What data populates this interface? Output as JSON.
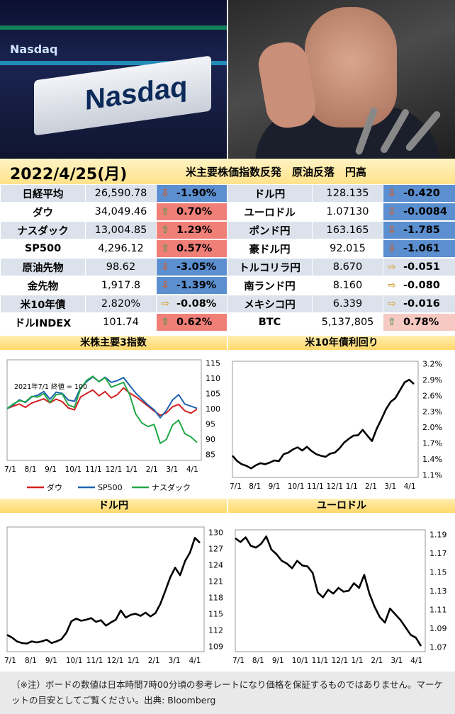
{
  "photos": {
    "left_label_main": "Nasdaq",
    "left_label_small": "Nasdaq",
    "left_alt": "Nasdaq",
    "right_alt": "portrait"
  },
  "header": {
    "date": "2022/4/25(月)",
    "headline": "米主要株価指数反発　原油反落　円高"
  },
  "board": {
    "left": [
      {
        "name": "日経平均",
        "value": "26,590.78",
        "change": "-1.90%",
        "dir": "down"
      },
      {
        "name": "ダウ",
        "value": "34,049.46",
        "change": "0.70%",
        "dir": "up"
      },
      {
        "name": "ナスダック",
        "value": "13,004.85",
        "change": "1.29%",
        "dir": "up"
      },
      {
        "name": "SP500",
        "value": "4,296.12",
        "change": "0.57%",
        "dir": "up"
      },
      {
        "name": "原油先物",
        "value": "98.62",
        "change": "-3.05%",
        "dir": "down"
      },
      {
        "name": "金先物",
        "value": "1,917.8",
        "change": "-1.39%",
        "dir": "down"
      },
      {
        "name": "米10年債",
        "value": "2.820%",
        "change": "-0.08%",
        "dir": "flat"
      },
      {
        "name": "ドルINDEX",
        "value": "101.74",
        "change": "0.62%",
        "dir": "up"
      }
    ],
    "right": [
      {
        "name": "ドル円",
        "value": "128.135",
        "change": "-0.420",
        "dir": "down"
      },
      {
        "name": "ユーロドル",
        "value": "1.07130",
        "change": "-0.0084",
        "dir": "down"
      },
      {
        "name": "ポンド円",
        "value": "163.165",
        "change": "-1.785",
        "dir": "down"
      },
      {
        "name": "豪ドル円",
        "value": "92.015",
        "change": "-1.061",
        "dir": "down"
      },
      {
        "name": "トルコリラ円",
        "value": "8.670",
        "change": "-0.051",
        "dir": "flat"
      },
      {
        "name": "南ランド円",
        "value": "8.160",
        "change": "-0.080",
        "dir": "flat"
      },
      {
        "name": "メキシコ円",
        "value": "6.339",
        "change": "-0.016",
        "dir": "flat"
      },
      {
        "name": "BTC",
        "value": "5,137,805",
        "change": "0.78%",
        "dir": "up-lt"
      }
    ]
  },
  "colors": {
    "up_bg": "#f07f78",
    "down_bg": "#5b8fcf",
    "dow": "#d42020",
    "sp500": "#1f63b0",
    "nasdaq": "#22a846",
    "line": "#000000"
  },
  "chart_data": [
    {
      "type": "line",
      "title": "米株主要3指数",
      "annotation": "2021年7/1 終値 = 100",
      "x_ticks": [
        "7/1",
        "8/1",
        "9/1",
        "10/1",
        "11/1",
        "12/1",
        "1/1",
        "2/1",
        "3/1",
        "4/1"
      ],
      "y_ticks": [
        85,
        90,
        95,
        100,
        105,
        110,
        115
      ],
      "ylim": [
        83,
        116
      ],
      "series": [
        {
          "name": "ダウ",
          "values": [
            100,
            100.8,
            101.5,
            100.4,
            101.8,
            102.5,
            103.2,
            101.9,
            103.1,
            102.3,
            100.2,
            99.6,
            103.8,
            105.0,
            106.1,
            104.2,
            105.6,
            103.5,
            104.6,
            106.8,
            105.1,
            103.9,
            102.4,
            100.8,
            99.2,
            97.8,
            98.6,
            100.6,
            101.4,
            99.3,
            98.5,
            99.8
          ]
        },
        {
          "name": "SP500",
          "values": [
            100,
            101.2,
            102.9,
            102.0,
            103.8,
            104.4,
            105.6,
            103.1,
            105.4,
            105.0,
            102.8,
            102.4,
            106.8,
            108.9,
            110.4,
            108.9,
            110.3,
            108.6,
            109.2,
            110.2,
            107.6,
            105.1,
            103.1,
            101.2,
            99.6,
            97.0,
            99.4,
            102.8,
            104.6,
            101.5,
            100.8,
            100.1
          ]
        },
        {
          "name": "ナスダック",
          "values": [
            100,
            101.5,
            102.6,
            102.2,
            104.0,
            103.8,
            104.9,
            102.0,
            104.6,
            104.8,
            101.2,
            100.4,
            106.6,
            109.3,
            110.6,
            108.8,
            110.2,
            107.0,
            107.8,
            108.6,
            104.6,
            98.2,
            95.3,
            94.1,
            94.8,
            88.6,
            89.9,
            94.6,
            96.2,
            91.8,
            90.7,
            88.9
          ]
        }
      ]
    },
    {
      "type": "line",
      "title": "米10年債利回り",
      "x_ticks": [
        "7/1",
        "8/1",
        "9/1",
        "10/1",
        "11/1",
        "12/1",
        "1/1",
        "2/1",
        "3/1",
        "4/1"
      ],
      "y_ticks": [
        "1.1%",
        "1.4%",
        "1.7%",
        "2.0%",
        "2.3%",
        "2.6%",
        "2.9%",
        "3.2%"
      ],
      "ylim": [
        1.05,
        3.25
      ],
      "values": [
        1.46,
        1.36,
        1.3,
        1.27,
        1.22,
        1.28,
        1.32,
        1.3,
        1.33,
        1.37,
        1.36,
        1.49,
        1.52,
        1.58,
        1.62,
        1.56,
        1.63,
        1.55,
        1.49,
        1.46,
        1.44,
        1.5,
        1.52,
        1.6,
        1.71,
        1.78,
        1.84,
        1.85,
        1.95,
        1.84,
        1.74,
        1.97,
        2.15,
        2.34,
        2.48,
        2.55,
        2.7,
        2.85,
        2.9,
        2.82
      ]
    },
    {
      "type": "line",
      "title": "ドル円",
      "x_ticks": [
        "7/1",
        "8/1",
        "9/1",
        "10/1",
        "11/1",
        "12/1",
        "1/1",
        "2/1",
        "3/1",
        "4/1"
      ],
      "y_ticks": [
        109,
        112,
        115,
        118,
        121,
        124,
        127,
        130
      ],
      "ylim": [
        108,
        131
      ],
      "values": [
        111.1,
        110.6,
        109.9,
        109.6,
        109.5,
        109.9,
        109.7,
        109.9,
        110.2,
        109.6,
        109.9,
        110.3,
        111.5,
        113.6,
        114.1,
        113.7,
        113.9,
        114.2,
        113.5,
        113.8,
        112.8,
        113.4,
        113.9,
        115.6,
        114.3,
        114.8,
        115.0,
        114.6,
        115.2,
        114.5,
        115.1,
        116.8,
        119.2,
        121.7,
        123.5,
        122.1,
        124.7,
        126.3,
        129.0,
        128.1
      ]
    },
    {
      "type": "line",
      "title": "ユーロドル",
      "x_ticks": [
        "7/1",
        "8/1",
        "9/1",
        "10/1",
        "11/1",
        "12/1",
        "1/1",
        "2/1",
        "3/1",
        "4/1"
      ],
      "y_ticks": [
        1.07,
        1.09,
        1.11,
        1.13,
        1.15,
        1.17,
        1.19
      ],
      "ylim": [
        1.065,
        1.195
      ],
      "values": [
        1.186,
        1.182,
        1.187,
        1.178,
        1.176,
        1.18,
        1.188,
        1.174,
        1.169,
        1.162,
        1.159,
        1.154,
        1.162,
        1.157,
        1.156,
        1.149,
        1.128,
        1.123,
        1.131,
        1.127,
        1.133,
        1.129,
        1.13,
        1.138,
        1.133,
        1.147,
        1.127,
        1.113,
        1.102,
        1.096,
        1.111,
        1.105,
        1.099,
        1.091,
        1.083,
        1.08,
        1.071
      ]
    }
  ],
  "note": "（※注）ボードの数値は日本時間7時00分頃の参考レートになり価格を保証するものではありません。マーケットの目安としてご覧ください。出典: Bloomberg"
}
